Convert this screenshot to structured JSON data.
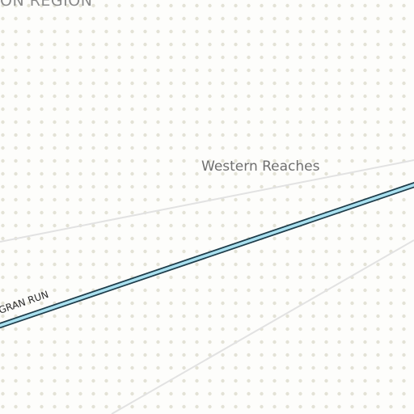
{
  "map": {
    "background_color": "#fdfdfb",
    "dot_color": "#e3e2d6",
    "region_label": "ON REGION",
    "place_label": "Western Reaches",
    "road_label": "GRAN RUN",
    "road": {
      "name": "GRAN RUN",
      "fill_color": "#a9e0ef",
      "casing_color": "#1d3c4a"
    },
    "boundaries": {
      "color": "#e2e2e2"
    }
  }
}
